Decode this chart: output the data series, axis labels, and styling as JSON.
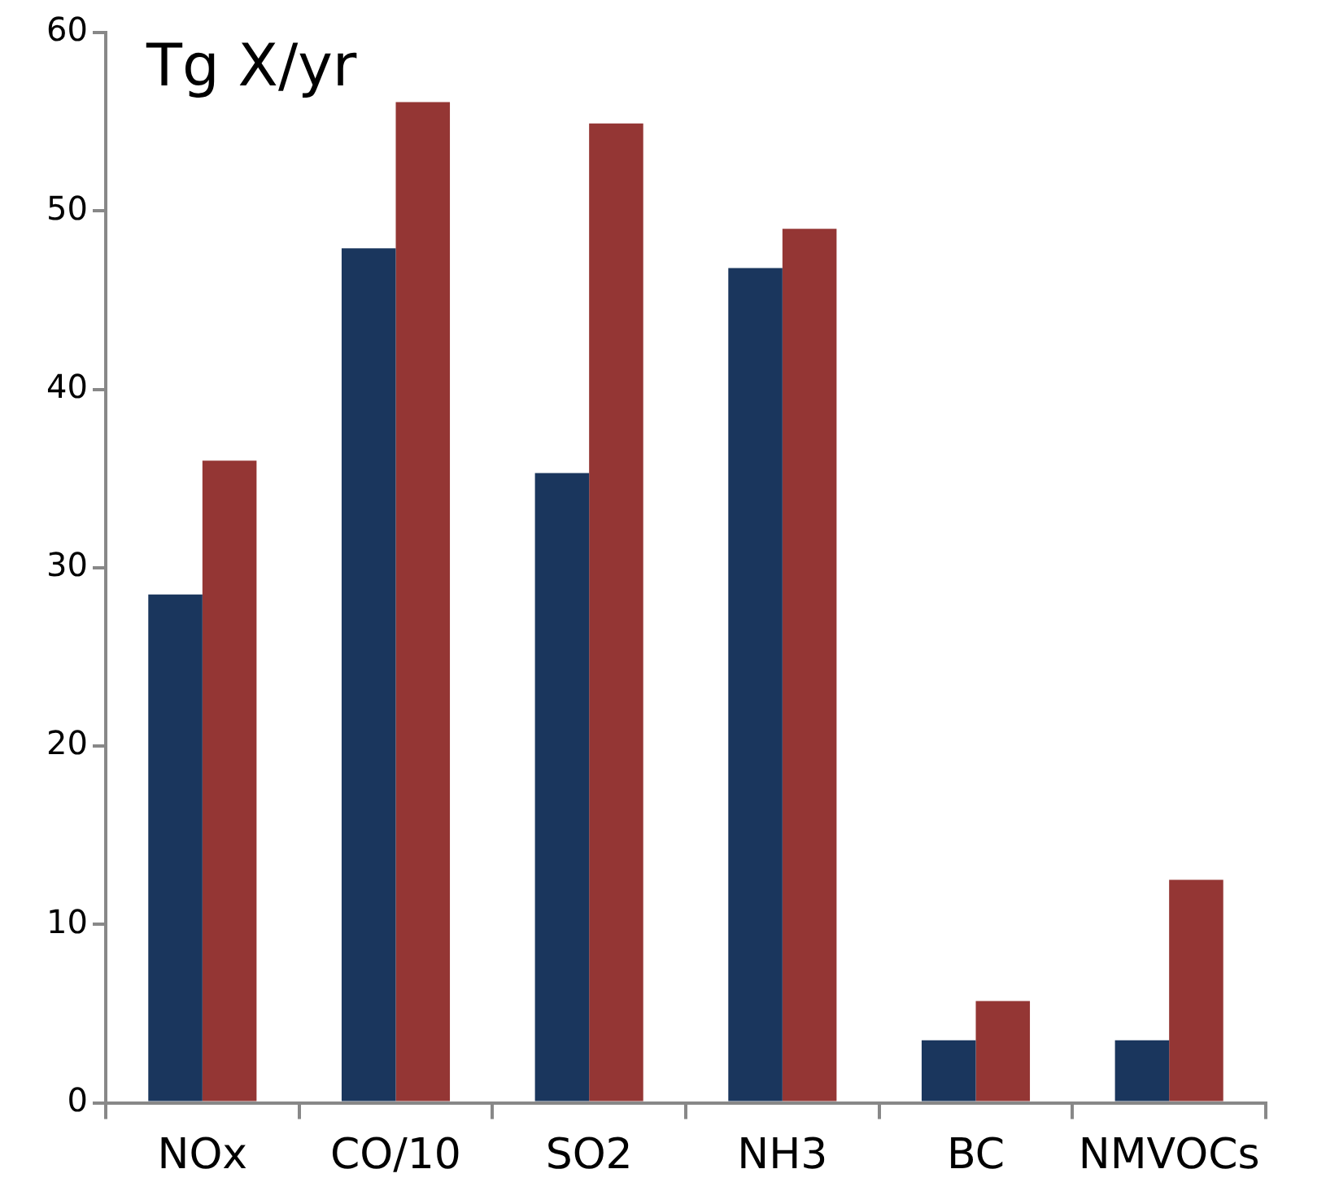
{
  "chart_data": {
    "type": "bar",
    "title": "Tg X/yr",
    "categories": [
      "NOx",
      "CO/10",
      "SO2",
      "NH3",
      "BC",
      "NMVOCs"
    ],
    "series": [
      {
        "color": "#1a365d",
        "values": [
          28.5,
          47.9,
          35.3,
          46.8,
          3.5,
          3.5
        ]
      },
      {
        "color": "#943634",
        "values": [
          36.0,
          56.1,
          54.9,
          49.0,
          5.7,
          12.5
        ]
      }
    ],
    "ylim": [
      0,
      60
    ],
    "yticks": [
      0,
      10,
      20,
      30,
      40,
      50,
      60
    ],
    "grid": false,
    "legend": false
  }
}
